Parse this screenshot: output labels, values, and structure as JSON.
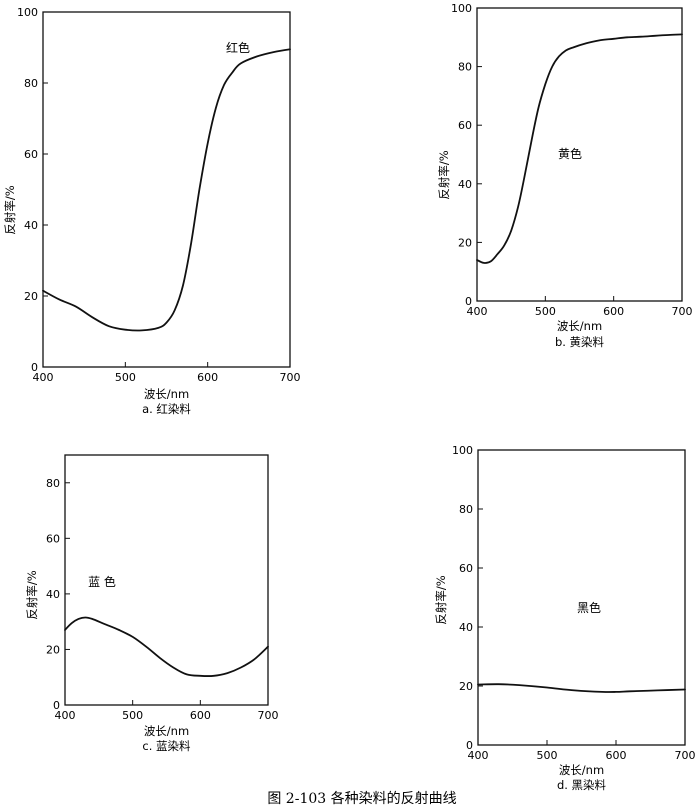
{
  "figure_caption": "图 2-103   各种染料的反射曲线",
  "chart_data": [
    {
      "type": "line",
      "panel_label": "a. 红染料",
      "annotation": "红色",
      "xlabel": "波长/nm",
      "ylabel": "反射率/%",
      "xlim": [
        400,
        700
      ],
      "ylim": [
        0,
        100
      ],
      "xticks": [
        400,
        500,
        600,
        700
      ],
      "yticks": [
        0,
        20,
        40,
        60,
        80,
        100
      ],
      "grid": false,
      "x": [
        400,
        420,
        440,
        460,
        480,
        500,
        520,
        540,
        550,
        560,
        570,
        580,
        590,
        600,
        610,
        620,
        630,
        640,
        660,
        680,
        700
      ],
      "y": [
        21.5,
        19,
        17,
        14,
        11.5,
        10.5,
        10.3,
        11,
        12.5,
        16,
        23,
        35,
        50,
        63,
        73,
        79.5,
        83,
        85.5,
        87.5,
        88.7,
        89.5
      ]
    },
    {
      "type": "line",
      "panel_label": "b. 黄染料",
      "annotation": "黄色",
      "xlabel": "波长/nm",
      "ylabel": "反射率/%",
      "xlim": [
        400,
        700
      ],
      "ylim": [
        0,
        100
      ],
      "xticks": [
        400,
        500,
        600,
        700
      ],
      "yticks": [
        0,
        20,
        40,
        60,
        80,
        100
      ],
      "grid": false,
      "x": [
        400,
        410,
        420,
        430,
        440,
        450,
        460,
        470,
        480,
        490,
        500,
        510,
        520,
        530,
        540,
        560,
        580,
        600,
        620,
        640,
        660,
        680,
        700
      ],
      "y": [
        14,
        13,
        13.5,
        16,
        19,
        24,
        32,
        43,
        55,
        66,
        74,
        80,
        83.5,
        85.5,
        86.5,
        88,
        89,
        89.5,
        90,
        90.2,
        90.5,
        90.8,
        91
      ]
    },
    {
      "type": "line",
      "panel_label": "c. 蓝染料",
      "annotation": "蓝 色",
      "xlabel": "波长/nm",
      "ylabel": "反射率/%",
      "xlim": [
        400,
        700
      ],
      "ylim": [
        0,
        90
      ],
      "xticks": [
        400,
        500,
        600,
        700
      ],
      "yticks": [
        0,
        20,
        40,
        60,
        80
      ],
      "grid": false,
      "x": [
        400,
        410,
        420,
        430,
        440,
        460,
        480,
        500,
        520,
        540,
        560,
        580,
        600,
        620,
        640,
        660,
        680,
        700
      ],
      "y": [
        27,
        29.5,
        31,
        31.5,
        31,
        29,
        27,
        24.5,
        21,
        17,
        13.5,
        11,
        10.5,
        10.5,
        11.5,
        13.5,
        16.5,
        21
      ]
    },
    {
      "type": "line",
      "panel_label": "d. 黑染料",
      "annotation": "黑色",
      "xlabel": "波长/nm",
      "ylabel": "反射率/%",
      "xlim": [
        400,
        700
      ],
      "ylim": [
        0,
        100
      ],
      "xticks": [
        400,
        500,
        600,
        700
      ],
      "yticks": [
        0,
        20,
        40,
        60,
        80,
        100
      ],
      "grid": false,
      "x": [
        400,
        430,
        460,
        500,
        540,
        580,
        600,
        620,
        660,
        700
      ],
      "y": [
        20.5,
        20.6,
        20.3,
        19.5,
        18.5,
        18,
        18,
        18.2,
        18.5,
        18.8
      ]
    }
  ]
}
